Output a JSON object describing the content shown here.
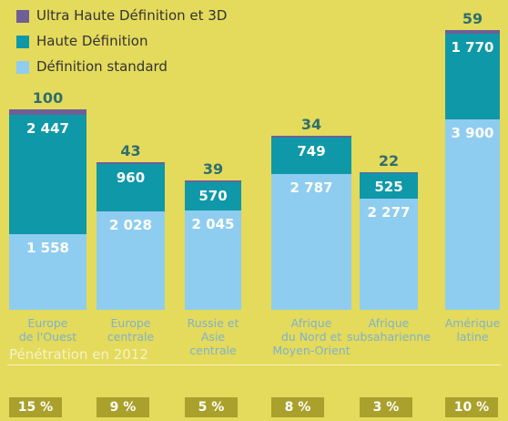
{
  "chart_data": {
    "type": "stacked_bar",
    "categories": [
      "Europe\nde l'Ouest",
      "Europe\ncentrale",
      "Russie et\nAsie\ncentrale",
      "Afrique\ndu Nord et\nMoyen-Orient",
      "Afrique\nsubsaharienne",
      "Amérique\nlatine"
    ],
    "series": [
      {
        "name": "Définition standard",
        "color": "#8ecdf0",
        "values": [
          1558,
          2028,
          2045,
          2787,
          2277,
          3900
        ],
        "value_labels": [
          "1 558",
          "2 028",
          "2 045",
          "2 787",
          "2 277",
          "3 900"
        ]
      },
      {
        "name": "Haute Définition",
        "color": "#0f98a8",
        "values": [
          2447,
          960,
          570,
          749,
          525,
          1770
        ],
        "value_labels": [
          "2 447",
          "960",
          "570",
          "749",
          "525",
          "1 770"
        ]
      },
      {
        "name": "Ultra Haute Définition et 3D",
        "color": "#6e5f96",
        "values": [
          100,
          43,
          39,
          34,
          22,
          59
        ]
      }
    ],
    "penetration": {
      "title": "Pénétration en 2012",
      "values": [
        15,
        9,
        5,
        8,
        3,
        10
      ],
      "value_labels": [
        "15 %",
        "9 %",
        "5 %",
        "8 %",
        "3 %",
        "10 %"
      ],
      "color": "#a9a12c"
    }
  }
}
